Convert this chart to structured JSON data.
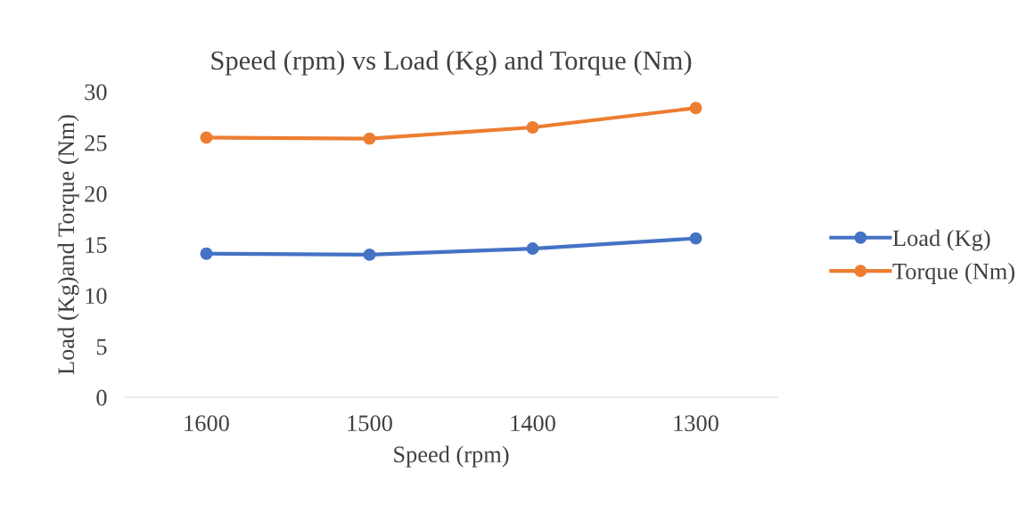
{
  "chart_data": {
    "type": "line",
    "title": "Speed (rpm) vs Load (Kg) and Torque (Nm)",
    "xlabel": "Speed (rpm)",
    "ylabel": "Load (Kg)and Torque (Nm)",
    "categories": [
      "1600",
      "1500",
      "1400",
      "1300"
    ],
    "series": [
      {
        "name": "Load (Kg)",
        "color": "#4472c4",
        "values": [
          14.1,
          14.0,
          14.6,
          15.6
        ]
      },
      {
        "name": "Torque (Nm)",
        "color": "#ed7d31",
        "values": [
          25.5,
          25.4,
          26.5,
          28.4
        ]
      }
    ],
    "ylim": [
      0,
      30
    ],
    "yticks": [
      0,
      5,
      10,
      15,
      20,
      25,
      30
    ],
    "grid": false,
    "legend": "right",
    "marker": "circle",
    "line_style": "solid"
  }
}
